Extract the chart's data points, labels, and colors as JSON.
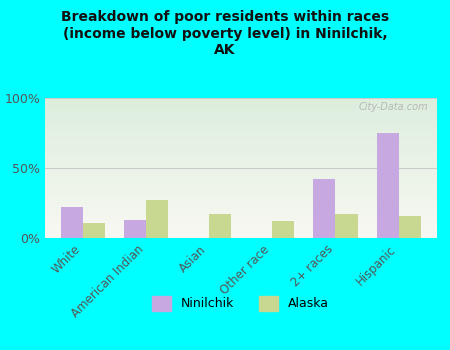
{
  "title": "Breakdown of poor residents within races\n(income below poverty level) in Ninilchik,\nAK",
  "categories": [
    "White",
    "American Indian",
    "Asian",
    "Other race",
    "2+ races",
    "Hispanic"
  ],
  "ninilchik_values": [
    22,
    13,
    0,
    0,
    42,
    75
  ],
  "alaska_values": [
    11,
    27,
    17,
    12,
    17,
    16
  ],
  "ninilchik_color": "#c8a8e0",
  "alaska_color": "#c8d890",
  "background_color": "#00ffff",
  "plot_bg_top": "#ddeedd",
  "plot_bg_bottom": "#f8f8f2",
  "ylabel_ticks": [
    "0%",
    "50%",
    "100%"
  ],
  "ytick_vals": [
    0,
    50,
    100
  ],
  "ylim": [
    0,
    100
  ],
  "bar_width": 0.35,
  "watermark": "City-Data.com",
  "legend_labels": [
    "Ninilchik",
    "Alaska"
  ]
}
